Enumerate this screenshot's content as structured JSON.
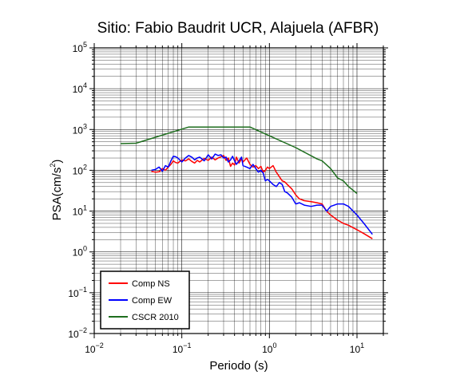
{
  "chart_data": {
    "type": "line",
    "title": "Sitio: Fabio Baudrit UCR, Alajuela (AFBR)",
    "xlabel": "Periodo (s)",
    "ylabel": "PSA(cm/s²)",
    "ylabel_main": "PSA(cm/s",
    "ylabel_sup": "2",
    "ylabel_end": ")",
    "x_scale": "log",
    "y_scale": "log",
    "xlim": [
      0.01,
      20
    ],
    "ylim": [
      0.01,
      100000
    ],
    "grid": true,
    "legend_position": "bottom-left",
    "x_ticks": [
      {
        "base": "10",
        "exp": "−2",
        "value": 0.01
      },
      {
        "base": "10",
        "exp": "−1",
        "value": 0.1
      },
      {
        "base": "10",
        "exp": "0",
        "value": 1
      },
      {
        "base": "10",
        "exp": "1",
        "value": 10
      }
    ],
    "y_ticks": [
      {
        "base": "10",
        "exp": "−2",
        "value": 0.01
      },
      {
        "base": "10",
        "exp": "−1",
        "value": 0.1
      },
      {
        "base": "10",
        "exp": "0",
        "value": 1
      },
      {
        "base": "10",
        "exp": "1",
        "value": 10
      },
      {
        "base": "10",
        "exp": "2",
        "value": 100
      },
      {
        "base": "10",
        "exp": "3",
        "value": 1000
      },
      {
        "base": "10",
        "exp": "4",
        "value": 10000
      },
      {
        "base": "10",
        "exp": "5",
        "value": 100000
      }
    ],
    "series": [
      {
        "name": "Comp NS",
        "color": "#ff0000",
        "points": [
          [
            0.045,
            95
          ],
          [
            0.05,
            90
          ],
          [
            0.055,
            92
          ],
          [
            0.06,
            110
          ],
          [
            0.065,
            100
          ],
          [
            0.07,
            120
          ],
          [
            0.075,
            140
          ],
          [
            0.08,
            170
          ],
          [
            0.085,
            155
          ],
          [
            0.09,
            150
          ],
          [
            0.1,
            180
          ],
          [
            0.11,
            170
          ],
          [
            0.12,
            190
          ],
          [
            0.13,
            165
          ],
          [
            0.14,
            150
          ],
          [
            0.15,
            175
          ],
          [
            0.16,
            160
          ],
          [
            0.18,
            195
          ],
          [
            0.2,
            175
          ],
          [
            0.22,
            210
          ],
          [
            0.24,
            180
          ],
          [
            0.26,
            200
          ],
          [
            0.28,
            215
          ],
          [
            0.3,
            230
          ],
          [
            0.32,
            175
          ],
          [
            0.34,
            200
          ],
          [
            0.36,
            125
          ],
          [
            0.38,
            150
          ],
          [
            0.4,
            135
          ],
          [
            0.42,
            210
          ],
          [
            0.45,
            150
          ],
          [
            0.48,
            190
          ],
          [
            0.5,
            160
          ],
          [
            0.55,
            200
          ],
          [
            0.6,
            140
          ],
          [
            0.65,
            120
          ],
          [
            0.7,
            130
          ],
          [
            0.75,
            110
          ],
          [
            0.8,
            125
          ],
          [
            0.85,
            90
          ],
          [
            0.9,
            100
          ],
          [
            0.95,
            120
          ],
          [
            1.0,
            110
          ],
          [
            1.1,
            130
          ],
          [
            1.2,
            90
          ],
          [
            1.3,
            70
          ],
          [
            1.4,
            55
          ],
          [
            1.5,
            52
          ],
          [
            1.6,
            45
          ],
          [
            1.8,
            35
          ],
          [
            2.0,
            25
          ],
          [
            2.2,
            20
          ],
          [
            2.5,
            18
          ],
          [
            3.0,
            17
          ],
          [
            3.5,
            16
          ],
          [
            4.0,
            15
          ],
          [
            4.5,
            10
          ],
          [
            5.0,
            8
          ],
          [
            6.0,
            6
          ],
          [
            7.0,
            5
          ],
          [
            8.0,
            4.5
          ],
          [
            10.0,
            3.5
          ],
          [
            12.0,
            2.8
          ],
          [
            15.0,
            2.1
          ]
        ]
      },
      {
        "name": "Comp EW",
        "color": "#0000ff",
        "points": [
          [
            0.045,
            100
          ],
          [
            0.05,
            105
          ],
          [
            0.055,
            120
          ],
          [
            0.06,
            95
          ],
          [
            0.065,
            130
          ],
          [
            0.07,
            120
          ],
          [
            0.075,
            170
          ],
          [
            0.08,
            220
          ],
          [
            0.085,
            215
          ],
          [
            0.09,
            200
          ],
          [
            0.1,
            160
          ],
          [
            0.11,
            200
          ],
          [
            0.12,
            230
          ],
          [
            0.13,
            210
          ],
          [
            0.14,
            180
          ],
          [
            0.15,
            200
          ],
          [
            0.16,
            210
          ],
          [
            0.18,
            170
          ],
          [
            0.2,
            240
          ],
          [
            0.22,
            190
          ],
          [
            0.24,
            250
          ],
          [
            0.26,
            230
          ],
          [
            0.28,
            240
          ],
          [
            0.3,
            200
          ],
          [
            0.32,
            210
          ],
          [
            0.34,
            160
          ],
          [
            0.36,
            180
          ],
          [
            0.38,
            220
          ],
          [
            0.4,
            170
          ],
          [
            0.42,
            140
          ],
          [
            0.45,
            170
          ],
          [
            0.48,
            210
          ],
          [
            0.5,
            130
          ],
          [
            0.55,
            120
          ],
          [
            0.6,
            110
          ],
          [
            0.65,
            140
          ],
          [
            0.7,
            110
          ],
          [
            0.75,
            90
          ],
          [
            0.8,
            100
          ],
          [
            0.85,
            85
          ],
          [
            0.9,
            55
          ],
          [
            0.95,
            60
          ],
          [
            1.0,
            55
          ],
          [
            1.1,
            45
          ],
          [
            1.2,
            40
          ],
          [
            1.3,
            50
          ],
          [
            1.4,
            45
          ],
          [
            1.5,
            30
          ],
          [
            1.6,
            28
          ],
          [
            1.8,
            22
          ],
          [
            2.0,
            15
          ],
          [
            2.2,
            16
          ],
          [
            2.5,
            14
          ],
          [
            3.0,
            13
          ],
          [
            3.5,
            14
          ],
          [
            4.0,
            14
          ],
          [
            4.5,
            10
          ],
          [
            5.0,
            13
          ],
          [
            6.0,
            15
          ],
          [
            7.0,
            15
          ],
          [
            8.0,
            13
          ],
          [
            10.0,
            8
          ],
          [
            12.0,
            5
          ],
          [
            15.0,
            2.7
          ]
        ]
      },
      {
        "name": "CSCR 2010",
        "color": "#1e6e1e",
        "points": [
          [
            0.02,
            450
          ],
          [
            0.03,
            460
          ],
          [
            0.12,
            1150
          ],
          [
            0.6,
            1150
          ],
          [
            1.0,
            700
          ],
          [
            2.0,
            360
          ],
          [
            3.5,
            190
          ],
          [
            4.0,
            170
          ],
          [
            5.0,
            110
          ],
          [
            6.0,
            65
          ],
          [
            7.0,
            55
          ],
          [
            8.0,
            40
          ],
          [
            10.0,
            27
          ]
        ]
      }
    ]
  }
}
